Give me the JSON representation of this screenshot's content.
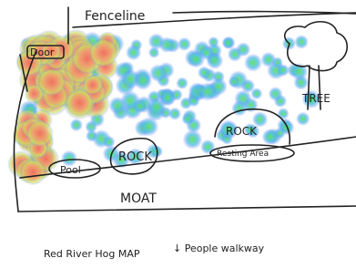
{
  "labels": {
    "fence": "Fenceline",
    "door": "Door",
    "rock_left": "ROCK",
    "rock_right": "ROCK",
    "resting": "Resting Area",
    "pool": "Pool",
    "tree": "TREE",
    "moat": "MOAT",
    "title": "Red River Hog MAP",
    "walkway": "↓ People walkway"
  }
}
